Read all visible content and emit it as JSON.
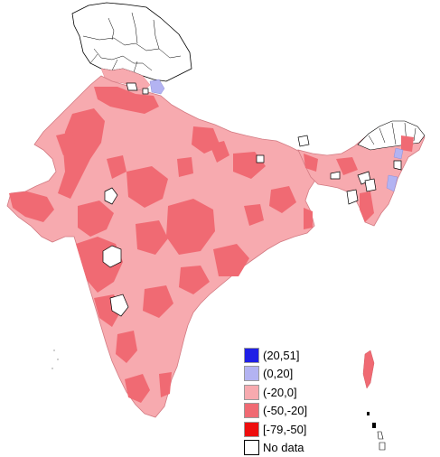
{
  "legend": {
    "items": [
      {
        "label": "(20,51]",
        "color": "#1f1fe6"
      },
      {
        "label": "(0,20]",
        "color": "#b3b3f2"
      },
      {
        "label": "(-20,0]",
        "color": "#f7aaaf"
      },
      {
        "label": "(-50,-20]",
        "color": "#f06a73"
      },
      {
        "label": "[-79,-50]",
        "color": "#ee0d0d"
      },
      {
        "label": "No data",
        "color": "#ffffff"
      }
    ]
  },
  "colors": {
    "base_fill": "#f7aaaf",
    "dark_fill": "#f06a73",
    "positive_fill": "#b3b3f2",
    "no_data_fill": "#ffffff",
    "boundary": "#000000",
    "district_line": "#e38a92"
  }
}
